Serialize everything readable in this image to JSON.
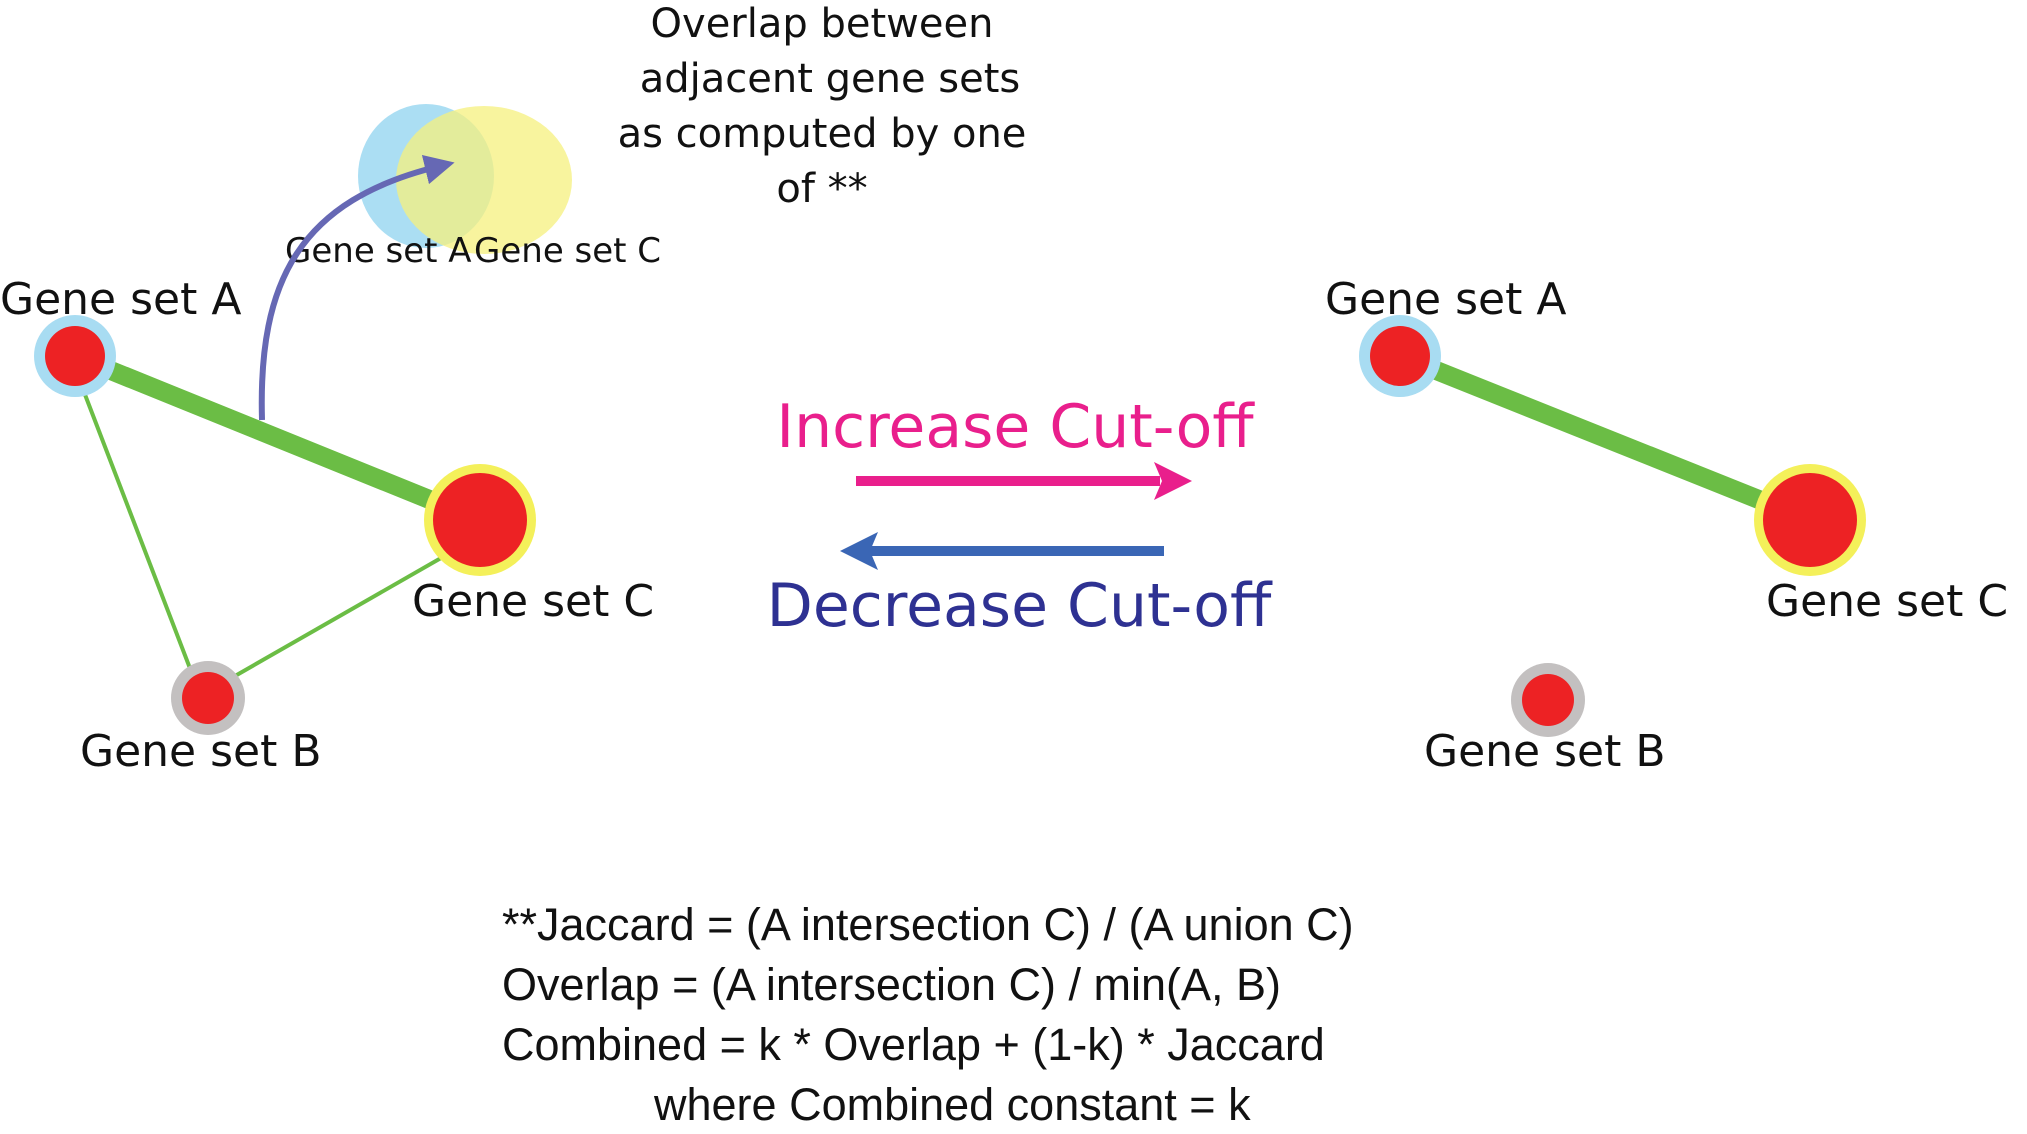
{
  "colors": {
    "node_fill": "#ed2224",
    "ring_a": "#a8dcf2",
    "ring_b": "#c3c0c0",
    "ring_c": "#f4f05a",
    "edge": "#6bbd45",
    "venn_a": "#8fd3ef",
    "venn_c": "#f5f07e",
    "curve_arrow": "#6668b4",
    "increase": "#e91f8c",
    "decrease": "#2e3192",
    "decrease_arrow": "#3a66b5"
  },
  "overlap_note": {
    "lines": [
      "Overlap between",
      "adjacent gene sets",
      "as computed by one",
      "of **"
    ]
  },
  "venn": {
    "label_a": "Gene set A",
    "label_c": "Gene set C"
  },
  "left_network": {
    "node_a": "Gene set A",
    "node_b": "Gene set B",
    "node_c": "Gene set C"
  },
  "right_network": {
    "node_a": "Gene set A",
    "node_b": "Gene set B",
    "node_c": "Gene set C"
  },
  "cutoff": {
    "increase": "Increase Cut-off",
    "decrease": "Decrease Cut-off"
  },
  "formulas": {
    "jaccard": "**Jaccard =  (A intersection C) / (A union C)",
    "overlap": "Overlap =  (A intersection C) / min(A, B)",
    "combined": "Combined = k * Overlap + (1-k) * Jaccard",
    "constant": "where Combined constant = k"
  }
}
